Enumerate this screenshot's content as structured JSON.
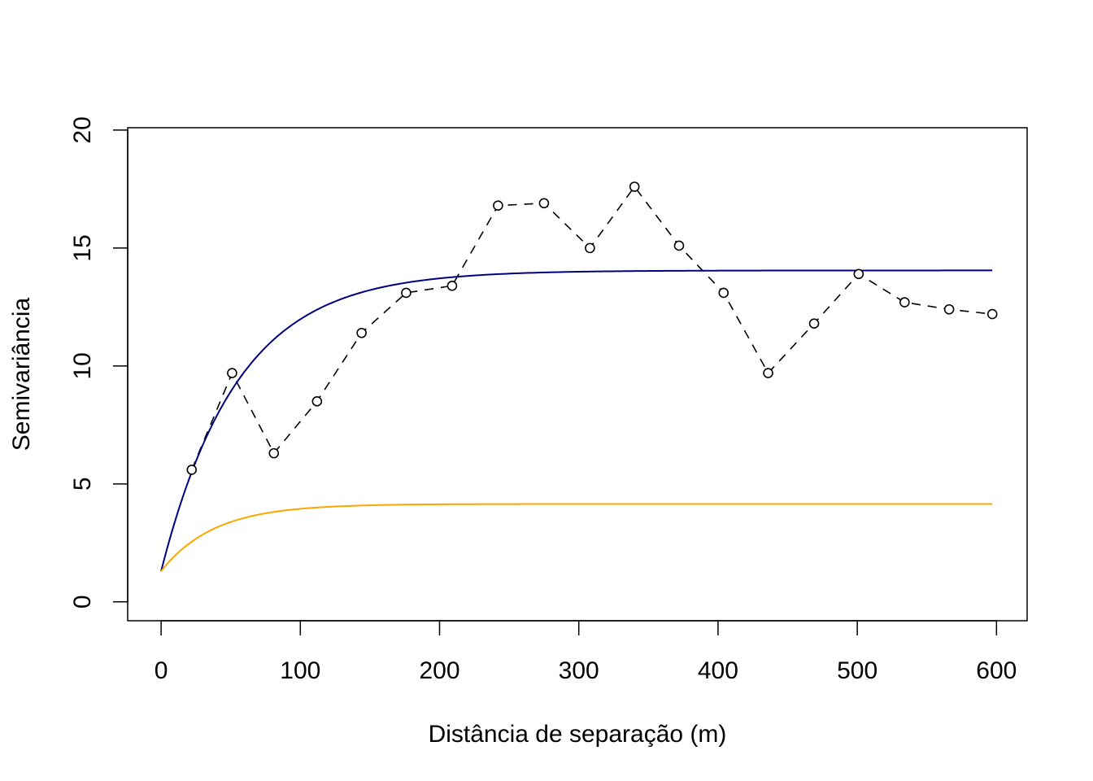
{
  "chart_data": {
    "type": "line",
    "title": "",
    "xlabel": "Distância de separação (m)",
    "ylabel": "Semivariância",
    "xlim": [
      -24,
      622
    ],
    "ylim": [
      -0.8,
      20.1
    ],
    "xticks": [
      0,
      100,
      200,
      300,
      400,
      500,
      600
    ],
    "yticks": [
      0,
      5,
      10,
      15,
      20
    ],
    "xtick_labels": [
      "0",
      "100",
      "200",
      "300",
      "400",
      "500",
      "600"
    ],
    "ytick_labels": [
      "0",
      "5",
      "10",
      "15",
      "20"
    ],
    "grid": false,
    "legend": "none",
    "points": {
      "x": [
        22,
        51,
        81,
        112,
        144,
        176,
        209,
        242,
        275,
        308,
        340,
        372,
        404,
        436,
        469,
        501,
        534,
        566,
        597
      ],
      "y": [
        5.6,
        9.7,
        6.3,
        8.5,
        11.4,
        13.1,
        13.4,
        16.8,
        16.9,
        15.0,
        17.6,
        15.1,
        13.1,
        9.7,
        11.8,
        13.9,
        12.7,
        12.4,
        12.2
      ]
    },
    "series": [
      {
        "style": "dashed",
        "color": "#000000",
        "markers": "open-circle",
        "x": [
          22,
          51,
          81,
          112,
          144,
          176,
          209,
          242,
          275,
          308,
          340,
          372,
          404,
          436,
          469,
          501,
          534,
          566,
          597
        ],
        "y": [
          5.6,
          9.7,
          6.3,
          8.5,
          11.4,
          13.1,
          13.4,
          16.8,
          16.9,
          15.0,
          17.6,
          15.1,
          13.1,
          9.7,
          11.8,
          13.9,
          12.7,
          12.4,
          12.2
        ]
      },
      {
        "style": "solid",
        "color": "#000080",
        "model": "exponential",
        "nugget": 1.3,
        "sill": 14.05,
        "range": 55,
        "xmax": 597
      },
      {
        "style": "solid",
        "color": "#FFA500",
        "model": "exponential",
        "nugget": 1.3,
        "sill": 4.15,
        "range": 38,
        "xmax": 597
      }
    ]
  }
}
